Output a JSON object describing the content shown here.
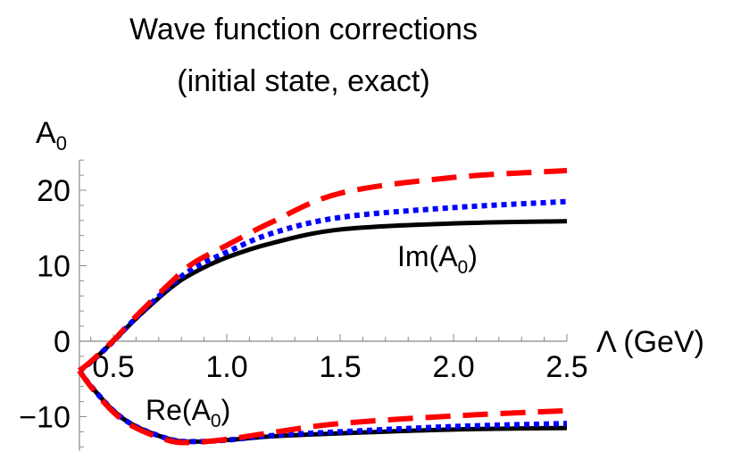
{
  "chart_data": {
    "type": "line",
    "title": [
      "Wave function corrections",
      "(initial state, exact)"
    ],
    "xlabel": "Λ (GeV)",
    "ylabel": "A",
    "ylabel_sub": "0",
    "xlim": [
      0.35,
      2.5
    ],
    "ylim": [
      -14.5,
      24
    ],
    "x_ticks": [
      0.5,
      1.0,
      1.5,
      2.0,
      2.5
    ],
    "x_tick_labels": [
      "0.5",
      "1.0",
      "1.5",
      "2.0",
      "2.5"
    ],
    "y_ticks": [
      -10,
      0,
      10,
      20
    ],
    "y_tick_labels": [
      "−10",
      "0",
      "10",
      "20"
    ],
    "grid": false,
    "annotations": [
      {
        "text": "Im(A",
        "sub": "0",
        "close": ")"
      },
      {
        "text": "Re(A",
        "sub": "0",
        "close": ")"
      }
    ],
    "x": [
      0.35,
      0.4,
      0.5,
      0.6,
      0.75,
      0.85,
      1.0,
      1.2,
      1.5,
      2.0,
      2.5
    ],
    "series": [
      {
        "group": "Im",
        "style": "solid",
        "color": "#000000",
        "values": [
          -3.9,
          -2.8,
          0,
          3.0,
          7.0,
          9.0,
          11.1,
          13.0,
          14.8,
          15.6,
          15.9
        ]
      },
      {
        "group": "Im",
        "style": "dotted",
        "color": "#0000ff",
        "values": [
          -3.9,
          -2.8,
          0,
          3.1,
          7.3,
          9.6,
          11.8,
          14.3,
          16.4,
          17.7,
          18.5
        ]
      },
      {
        "group": "Im",
        "style": "dashed",
        "color": "#ff0000",
        "values": [
          -3.9,
          -2.7,
          0.1,
          3.3,
          7.7,
          10.3,
          12.7,
          15.8,
          19.6,
          21.7,
          22.6
        ]
      },
      {
        "group": "Re",
        "style": "solid",
        "color": "#000000",
        "values": [
          -3.9,
          -5.9,
          -9.2,
          -11.3,
          -13.0,
          -13.3,
          -13.1,
          -12.6,
          -12.2,
          -11.7,
          -11.5
        ]
      },
      {
        "group": "Re",
        "style": "dotted",
        "color": "#0000ff",
        "values": [
          -3.9,
          -5.9,
          -9.2,
          -11.3,
          -13.0,
          -13.3,
          -13.1,
          -12.5,
          -12.0,
          -11.3,
          -10.9
        ]
      },
      {
        "group": "Re",
        "style": "dashed",
        "color": "#ff0000",
        "values": [
          -3.9,
          -6.0,
          -9.4,
          -11.5,
          -13.2,
          -13.4,
          -13.0,
          -12.1,
          -10.9,
          -9.9,
          -9.2
        ]
      }
    ]
  }
}
